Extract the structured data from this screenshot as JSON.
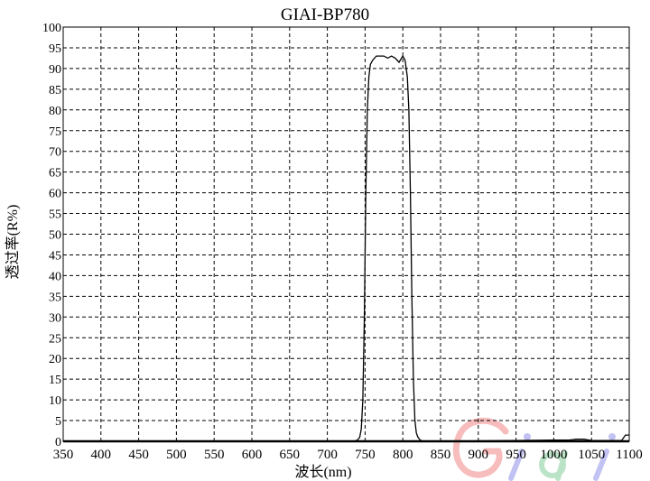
{
  "chart_data": {
    "type": "line",
    "title": "GIAI-BP780",
    "xlabel": "波长(nm)",
    "ylabel": "透过率(R%)",
    "xlim": [
      350,
      1100
    ],
    "ylim": [
      0,
      100
    ],
    "xticks": [
      350,
      400,
      450,
      500,
      550,
      600,
      650,
      700,
      750,
      800,
      850,
      900,
      950,
      1000,
      1050,
      1100
    ],
    "yticks": [
      0,
      5,
      10,
      15,
      20,
      25,
      30,
      35,
      40,
      45,
      50,
      55,
      60,
      65,
      70,
      75,
      80,
      85,
      90,
      95,
      100
    ],
    "grid": true,
    "series": [
      {
        "color": "#000000",
        "x": [
          350,
          700,
          735,
          740,
          743,
          745,
          747,
          749,
          751,
          753,
          755,
          757,
          760,
          765,
          770,
          775,
          780,
          785,
          790,
          795,
          800,
          803,
          806,
          808,
          810,
          812,
          814,
          816,
          818,
          820,
          823,
          826,
          830,
          850,
          900,
          950,
          1000,
          1020,
          1030,
          1040,
          1050,
          1090,
          1095,
          1100
        ],
        "y": [
          0,
          0,
          0,
          0.3,
          1,
          3,
          10,
          30,
          60,
          80,
          88,
          91,
          92,
          93,
          93,
          93,
          92.5,
          93,
          92.5,
          91.5,
          93,
          92,
          88,
          80,
          60,
          35,
          15,
          5,
          2,
          1,
          0.3,
          0,
          0,
          0,
          0.1,
          0.2,
          0.3,
          0.3,
          0.5,
          0.5,
          0.2,
          0.2,
          1.5,
          1.5
        ]
      }
    ]
  },
  "watermark": "Giai"
}
